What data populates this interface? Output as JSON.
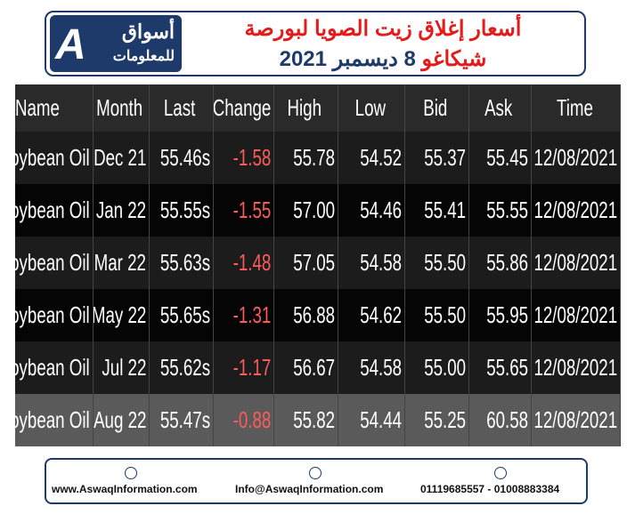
{
  "header": {
    "logo": {
      "line1": "أسواق",
      "line2": "للمعلومات"
    },
    "title": {
      "line1": "أسعار إغلاق زيت الصويا لبورصة",
      "line2_red": "شيكاغو",
      "line2_blue": "8 ديسمبر 2021"
    }
  },
  "table": {
    "columns": [
      "Name",
      "Month",
      "Last",
      "Change",
      "High",
      "Low",
      "Bid",
      "Ask",
      "Time"
    ],
    "rows": [
      [
        "Soybean Oil",
        "Dec 21",
        "55.46s",
        "-1.58",
        "55.78",
        "54.52",
        "55.37",
        "55.45",
        "12/08/2021"
      ],
      [
        "Soybean Oil",
        "Jan 22",
        "55.55s",
        "-1.55",
        "57.00",
        "54.46",
        "55.41",
        "55.55",
        "12/08/2021"
      ],
      [
        "Soybean Oil",
        "Mar 22",
        "55.63s",
        "-1.48",
        "57.05",
        "54.58",
        "55.50",
        "55.86",
        "12/08/2021"
      ],
      [
        "Soybean Oil",
        "May 22",
        "55.65s",
        "-1.31",
        "56.88",
        "54.62",
        "55.50",
        "55.95",
        "12/08/2021"
      ],
      [
        "Soybean Oil",
        "Jul 22",
        "55.62s",
        "-1.17",
        "56.67",
        "54.58",
        "55.00",
        "55.65",
        "12/08/2021"
      ],
      [
        "Soybean Oil",
        "Aug 22",
        "55.47s",
        "-0.88",
        "55.82",
        "54.44",
        "55.25",
        "60.58",
        "12/08/2021"
      ]
    ]
  },
  "footer": {
    "website": "www.AswaqInformation.com",
    "email": "Info@AswaqInformation.com",
    "phone": "01119685557 - 01008883384"
  }
}
